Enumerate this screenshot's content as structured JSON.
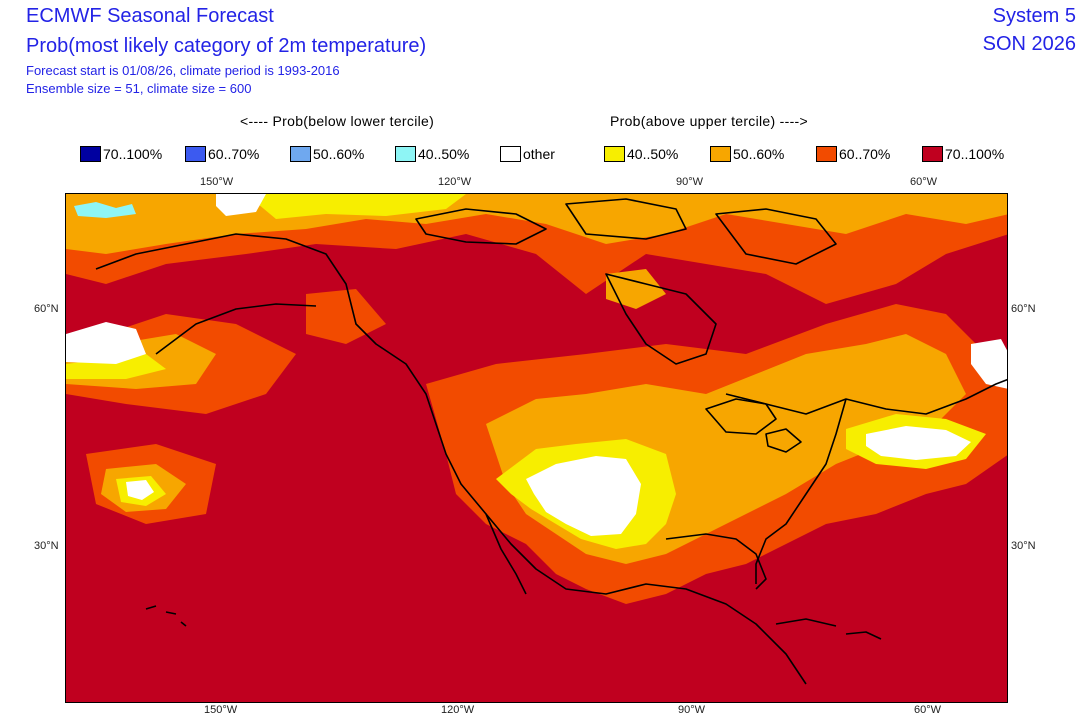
{
  "header": {
    "title": "ECMWF Seasonal Forecast",
    "subtitle": "Prob(most likely category of 2m temperature)",
    "forecast_line": "Forecast start is 01/08/26, climate period is 1993-2016",
    "ensemble_line": "Ensemble size = 51, climate size = 600",
    "system": "System 5",
    "season": "SON 2026"
  },
  "legend": {
    "below_label": "<---- Prob(below lower tercile)",
    "above_label": "Prob(above upper tercile) ---->",
    "items": [
      {
        "label": "70..100%",
        "color": "#0000a0"
      },
      {
        "label": "60..70%",
        "color": "#3c5af0"
      },
      {
        "label": "50..60%",
        "color": "#6fa8ef"
      },
      {
        "label": "40..50%",
        "color": "#8ef5f5"
      },
      {
        "label": "other",
        "color": "#ffffff"
      },
      {
        "label": "40..50%",
        "color": "#f7ee00"
      },
      {
        "label": "50..60%",
        "color": "#f7a600"
      },
      {
        "label": "60..70%",
        "color": "#f24b00"
      },
      {
        "label": "70..100%",
        "color": "#c0001f"
      }
    ]
  },
  "axes": {
    "lon_top": [
      "150°W",
      "120°W",
      "90°W",
      "60°W"
    ],
    "lon_bottom": [
      "150°W",
      "120°W",
      "90°W",
      "60°W"
    ],
    "lat_left": [
      "60°N",
      "30°N"
    ],
    "lat_right": [
      "60°N",
      "30°N"
    ]
  },
  "colors": {
    "title_blue": "#2323e6",
    "coast": "#000000"
  }
}
